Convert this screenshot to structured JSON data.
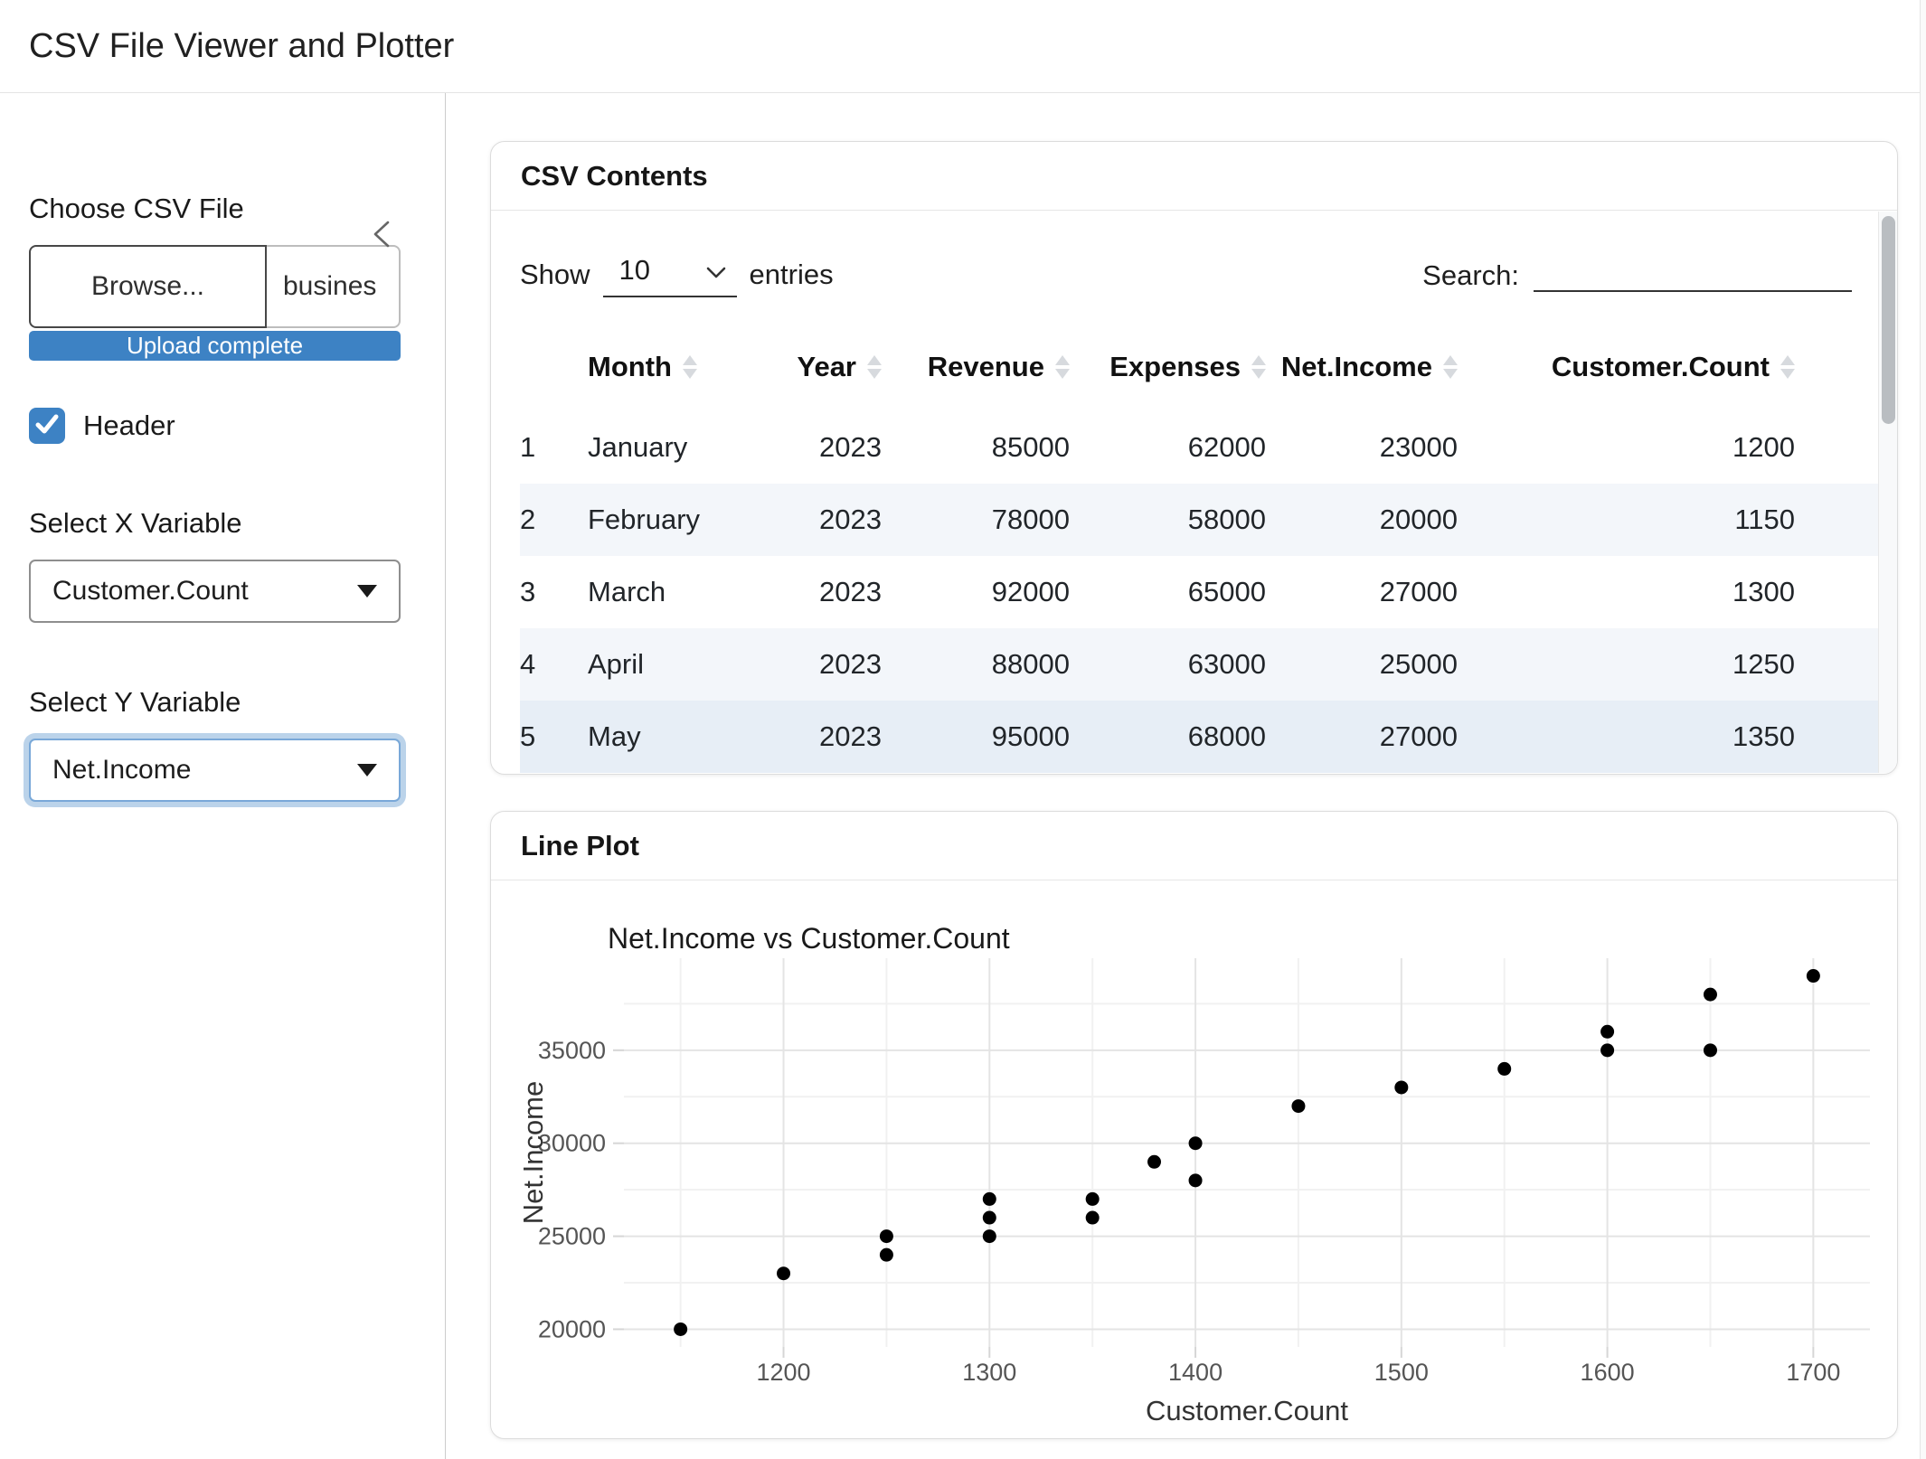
{
  "colors": {
    "accent": "#3d82c4",
    "stripe": "#f3f6fa",
    "row_hover": "#e7eef6",
    "point": "#000000"
  },
  "app": {
    "title": "CSV File Viewer and Plotter"
  },
  "sidebar": {
    "collapse_icon": "chevron-left",
    "file_input": {
      "label": "Choose CSV File",
      "browse_label": "Browse...",
      "filename_display": "busines",
      "progress_text": "Upload complete"
    },
    "header_checkbox": {
      "label": "Header",
      "checked": true
    },
    "x_select": {
      "label": "Select X Variable",
      "value": "Customer.Count"
    },
    "y_select": {
      "label": "Select Y Variable",
      "value": "Net.Income"
    }
  },
  "csv_card": {
    "title": "CSV Contents",
    "length_label_before": "Show",
    "page_size": "10",
    "length_label_after": "entries",
    "search_label": "Search:",
    "search_value": "",
    "table": {
      "columns": [
        "Month",
        "Year",
        "Revenue",
        "Expenses",
        "Net.Income",
        "Customer.Count"
      ],
      "numeric_columns": [
        "Year",
        "Revenue",
        "Expenses",
        "Net.Income",
        "Customer.Count"
      ],
      "rows": [
        [
          "1",
          "January",
          "2023",
          "85000",
          "62000",
          "23000",
          "1200"
        ],
        [
          "2",
          "February",
          "2023",
          "78000",
          "58000",
          "20000",
          "1150"
        ],
        [
          "3",
          "March",
          "2023",
          "92000",
          "65000",
          "27000",
          "1300"
        ],
        [
          "4",
          "April",
          "2023",
          "88000",
          "63000",
          "25000",
          "1250"
        ],
        [
          "5",
          "May",
          "2023",
          "95000",
          "68000",
          "27000",
          "1350"
        ]
      ],
      "row_styles": [
        "",
        "stripe",
        "",
        "stripe",
        "hovered"
      ]
    }
  },
  "plot_card": {
    "title": "Line Plot"
  },
  "chart_data": {
    "type": "scatter",
    "title": "Net.Income vs Customer.Count",
    "xlabel": "Customer.Count",
    "ylabel": "Net.Income",
    "points": [
      [
        1150,
        20000
      ],
      [
        1200,
        23000
      ],
      [
        1250,
        24000
      ],
      [
        1250,
        25000
      ],
      [
        1300,
        25000
      ],
      [
        1300,
        26000
      ],
      [
        1300,
        27000
      ],
      [
        1350,
        26000
      ],
      [
        1350,
        27000
      ],
      [
        1380,
        29000
      ],
      [
        1400,
        28000
      ],
      [
        1400,
        30000
      ],
      [
        1450,
        32000
      ],
      [
        1500,
        33000
      ],
      [
        1550,
        34000
      ],
      [
        1600,
        35000
      ],
      [
        1600,
        36000
      ],
      [
        1650,
        35000
      ],
      [
        1650,
        38000
      ],
      [
        1700,
        39000
      ]
    ],
    "xlim": [
      1122.5,
      1727.5
    ],
    "ylim": [
      19050,
      39950
    ],
    "xticks": [
      1200,
      1300,
      1400,
      1500,
      1600,
      1700
    ],
    "yticks": [
      20000,
      25000,
      30000,
      35000
    ],
    "xticks_minor": [
      1150,
      1250,
      1350,
      1450,
      1550,
      1650
    ],
    "yticks_minor": [
      22500,
      27500,
      32500,
      37500
    ],
    "grid": true,
    "legend": "none",
    "point_color": "#000000"
  }
}
